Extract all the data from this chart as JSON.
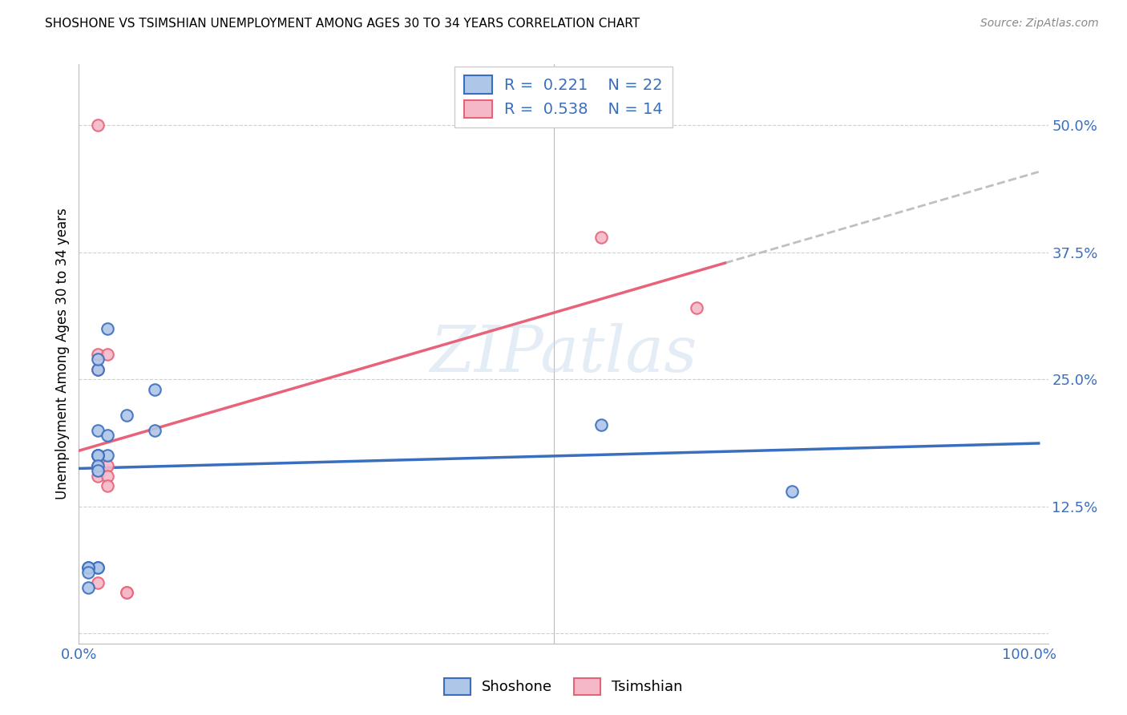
{
  "title": "SHOSHONE VS TSIMSHIAN UNEMPLOYMENT AMONG AGES 30 TO 34 YEARS CORRELATION CHART",
  "source": "Source: ZipAtlas.com",
  "xlabel": "",
  "ylabel": "Unemployment Among Ages 30 to 34 years",
  "shoshone_x": [
    0.02,
    0.03,
    0.02,
    0.02,
    0.03,
    0.08,
    0.02,
    0.02,
    0.02,
    0.02,
    0.02,
    0.02,
    0.02,
    0.01,
    0.01,
    0.01,
    0.01,
    0.55,
    0.75,
    0.05,
    0.03,
    0.08
  ],
  "shoshone_y": [
    0.175,
    0.175,
    0.26,
    0.27,
    0.3,
    0.24,
    0.2,
    0.175,
    0.175,
    0.165,
    0.16,
    0.065,
    0.065,
    0.065,
    0.065,
    0.06,
    0.045,
    0.205,
    0.14,
    0.215,
    0.195,
    0.2
  ],
  "tsimshian_x": [
    0.02,
    0.02,
    0.02,
    0.02,
    0.02,
    0.02,
    0.03,
    0.03,
    0.03,
    0.03,
    0.55,
    0.65,
    0.05,
    0.05
  ],
  "tsimshian_y": [
    0.5,
    0.275,
    0.26,
    0.165,
    0.155,
    0.05,
    0.275,
    0.165,
    0.155,
    0.145,
    0.39,
    0.32,
    0.04,
    0.04
  ],
  "shoshone_color": "#aec6e8",
  "tsimshian_color": "#f4b8c8",
  "shoshone_line_color": "#3a6fbf",
  "tsimshian_line_color": "#e8637a",
  "shoshone_R": "0.221",
  "shoshone_N": "22",
  "tsimshian_R": "0.538",
  "tsimshian_N": "14",
  "xlim": [
    0.0,
    1.02
  ],
  "ylim": [
    -0.01,
    0.56
  ],
  "xticks": [
    0.0,
    0.25,
    0.5,
    0.75,
    1.0
  ],
  "xtick_labels": [
    "0.0%",
    "",
    "",
    "",
    "100.0%"
  ],
  "yticks": [
    0.0,
    0.125,
    0.25,
    0.375,
    0.5
  ],
  "ytick_labels": [
    "",
    "12.5%",
    "25.0%",
    "37.5%",
    "50.0%"
  ],
  "background_color": "#ffffff",
  "grid_color": "#d0d0d0",
  "marker_size": 110,
  "marker_linewidth": 1.5,
  "watermark_text": "ZIPatlas",
  "figsize": [
    14.06,
    8.92
  ],
  "dpi": 100
}
